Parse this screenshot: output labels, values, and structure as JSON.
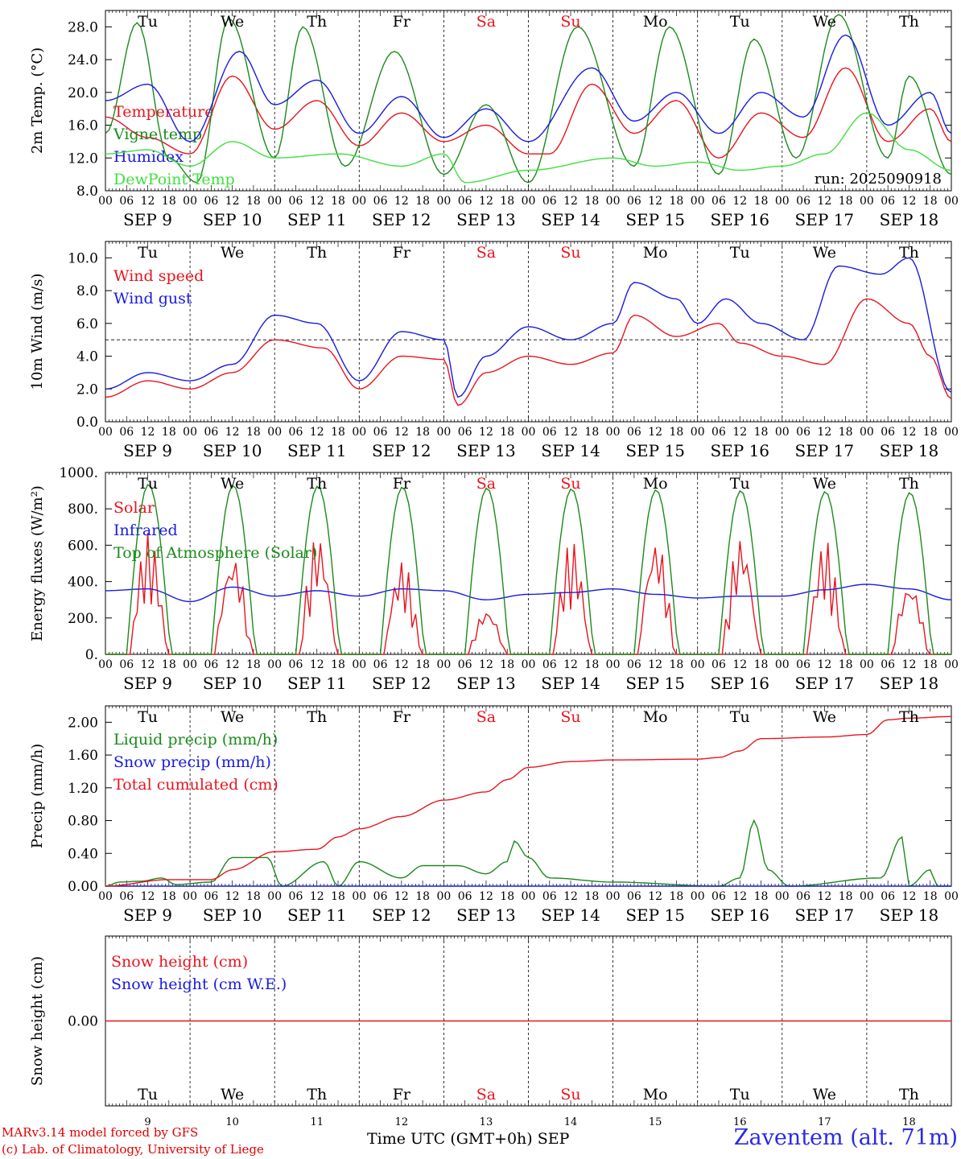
{
  "run_label": "run: 2025090918",
  "station": "Zaventem (alt. 71m)",
  "credit_line1": "MARv3.14 model forced by GFS",
  "credit_line2": "(c) Lab. of Climatology, University of Liege",
  "x_axis_title": "Time UTC (GMT+0h) SEP",
  "hour_ticks": [
    "00",
    "06",
    "12",
    "18"
  ],
  "days": [
    {
      "weekday": "Tu",
      "date": "SEP  9",
      "num": "9",
      "weekend": false
    },
    {
      "weekday": "We",
      "date": "SEP 10",
      "num": "10",
      "weekend": false
    },
    {
      "weekday": "Th",
      "date": "SEP 11",
      "num": "11",
      "weekend": false
    },
    {
      "weekday": "Fr",
      "date": "SEP 12",
      "num": "12",
      "weekend": false
    },
    {
      "weekday": "Sa",
      "date": "SEP 13",
      "num": "13",
      "weekend": true
    },
    {
      "weekday": "Su",
      "date": "SEP 14",
      "num": "14",
      "weekend": true
    },
    {
      "weekday": "Mo",
      "date": "SEP 15",
      "num": "15",
      "weekend": false
    },
    {
      "weekday": "Tu",
      "date": "SEP 16",
      "num": "16",
      "weekend": false
    },
    {
      "weekday": "We",
      "date": "SEP 17",
      "num": "17",
      "weekend": false
    },
    {
      "weekday": "Th",
      "date": "SEP 18",
      "num": "18",
      "weekend": false
    }
  ],
  "colors": {
    "red": "#e8141e",
    "green": "#1b8a1b",
    "blue": "#1a1ae0",
    "lightgreen": "#3fe03f",
    "weekend": "#e8141e"
  },
  "chart_data": [
    {
      "type": "line",
      "ylabel": "2m Temp. (°C)",
      "ylim": [
        8,
        30
      ],
      "yticks": [
        8,
        12,
        16,
        20,
        24,
        28
      ],
      "tick_format": "1",
      "x_unit": "hours since 2025-09-09 00 UTC",
      "series": [
        {
          "name": "Temperature",
          "color": "red",
          "points": [
            [
              0,
              17
            ],
            [
              12,
              14.5
            ],
            [
              24,
              12.5
            ],
            [
              36,
              22
            ],
            [
              48,
              15.5
            ],
            [
              60,
              19
            ],
            [
              72,
              13.5
            ],
            [
              84,
              17.5
            ],
            [
              96,
              14
            ],
            [
              108,
              16
            ],
            [
              120,
              12.5
            ],
            [
              126,
              12.5
            ],
            [
              138,
              21
            ],
            [
              150,
              15
            ],
            [
              162,
              19
            ],
            [
              174,
              12
            ],
            [
              186,
              17.5
            ],
            [
              198,
              14.5
            ],
            [
              210,
              23
            ],
            [
              222,
              14
            ],
            [
              234,
              18
            ],
            [
              240,
              14
            ]
          ]
        },
        {
          "name": "Vigne temp",
          "color": "green",
          "points": [
            [
              0,
              15
            ],
            [
              9,
              28.5
            ],
            [
              18,
              12
            ],
            [
              26,
              9
            ],
            [
              35,
              29
            ],
            [
              48,
              12
            ],
            [
              56,
              28
            ],
            [
              68,
              11
            ],
            [
              82,
              25
            ],
            [
              96,
              10
            ],
            [
              108,
              18.5
            ],
            [
              120,
              9
            ],
            [
              134,
              28
            ],
            [
              150,
              11
            ],
            [
              160,
              28
            ],
            [
              174,
              10
            ],
            [
              184,
              26.5
            ],
            [
              196,
              12
            ],
            [
              208,
              29.5
            ],
            [
              222,
              12
            ],
            [
              228,
              22
            ],
            [
              240,
              10
            ]
          ]
        },
        {
          "name": "Humidex",
          "color": "blue",
          "points": [
            [
              0,
              19
            ],
            [
              12,
              21
            ],
            [
              24,
              14
            ],
            [
              38,
              25
            ],
            [
              48,
              18.5
            ],
            [
              60,
              21.5
            ],
            [
              72,
              15
            ],
            [
              84,
              19.5
            ],
            [
              96,
              14.5
            ],
            [
              108,
              18
            ],
            [
              120,
              14
            ],
            [
              138,
              23
            ],
            [
              150,
              16.5
            ],
            [
              162,
              20
            ],
            [
              174,
              15
            ],
            [
              186,
              20
            ],
            [
              198,
              17
            ],
            [
              210,
              27
            ],
            [
              222,
              16
            ],
            [
              234,
              20
            ],
            [
              240,
              15
            ]
          ]
        },
        {
          "name": "DewPoint Temp",
          "color": "lightgreen",
          "points": [
            [
              0,
              12.5
            ],
            [
              12,
              13
            ],
            [
              24,
              11
            ],
            [
              36,
              14
            ],
            [
              48,
              12
            ],
            [
              66,
              12.5
            ],
            [
              84,
              11
            ],
            [
              96,
              12.5
            ],
            [
              102,
              9
            ],
            [
              120,
              10.5
            ],
            [
              144,
              12
            ],
            [
              156,
              11
            ],
            [
              168,
              11.5
            ],
            [
              180,
              10.5
            ],
            [
              192,
              11
            ],
            [
              204,
              12.5
            ],
            [
              216,
              17.5
            ],
            [
              228,
              13
            ],
            [
              240,
              10.5
            ]
          ]
        }
      ]
    },
    {
      "type": "line",
      "ylabel": "10m Wind (m/s)",
      "ylim": [
        0,
        11
      ],
      "yticks": [
        0,
        2,
        4,
        6,
        8,
        10
      ],
      "tick_format": "1",
      "reference_line": 5,
      "x_unit": "hours since 2025-09-09 00 UTC",
      "series": [
        {
          "name": "Wind speed",
          "color": "red",
          "points": [
            [
              0,
              1.5
            ],
            [
              12,
              2.5
            ],
            [
              24,
              2
            ],
            [
              36,
              3
            ],
            [
              48,
              5
            ],
            [
              62,
              4.5
            ],
            [
              72,
              2
            ],
            [
              84,
              4
            ],
            [
              96,
              3.8
            ],
            [
              100,
              1
            ],
            [
              108,
              3
            ],
            [
              120,
              4
            ],
            [
              132,
              3.5
            ],
            [
              144,
              4.2
            ],
            [
              150,
              6.5
            ],
            [
              162,
              5.2
            ],
            [
              174,
              6
            ],
            [
              180,
              4.8
            ],
            [
              192,
              4
            ],
            [
              204,
              3.5
            ],
            [
              216,
              7.5
            ],
            [
              228,
              6
            ],
            [
              234,
              4
            ],
            [
              240,
              1.4
            ]
          ]
        },
        {
          "name": "Wind gust",
          "color": "blue",
          "points": [
            [
              0,
              2
            ],
            [
              12,
              3
            ],
            [
              24,
              2.5
            ],
            [
              36,
              3.5
            ],
            [
              48,
              6.5
            ],
            [
              60,
              6
            ],
            [
              72,
              2.5
            ],
            [
              84,
              5.5
            ],
            [
              96,
              5
            ],
            [
              100,
              1.5
            ],
            [
              108,
              4
            ],
            [
              120,
              5.8
            ],
            [
              132,
              5
            ],
            [
              144,
              6
            ],
            [
              150,
              8.5
            ],
            [
              162,
              7.5
            ],
            [
              168,
              6
            ],
            [
              176,
              7.5
            ],
            [
              186,
              6
            ],
            [
              198,
              5
            ],
            [
              208,
              9.5
            ],
            [
              220,
              9
            ],
            [
              228,
              10
            ],
            [
              240,
              1.8
            ]
          ]
        }
      ]
    },
    {
      "type": "line",
      "ylabel": "Energy fluxes (W/m²)",
      "ylim": [
        0,
        1000
      ],
      "yticks": [
        0,
        200,
        400,
        600,
        800,
        1000
      ],
      "tick_format": "0.",
      "x_unit": "hours since 2025-09-09 00 UTC",
      "diurnal": {
        "rise": 6,
        "set": 18.5,
        "toa_peaks": [
          935,
          930,
          925,
          920,
          915,
          910,
          905,
          900,
          895,
          890
        ]
      },
      "solar_peaks": [
        670,
        560,
        670,
        520,
        260,
        630,
        650,
        660,
        630,
        410
      ],
      "series": [
        {
          "name": "Solar",
          "color": "red",
          "points": []
        },
        {
          "name": "Infrared",
          "color": "blue",
          "points": [
            [
              0,
              350
            ],
            [
              12,
              360
            ],
            [
              24,
              290
            ],
            [
              36,
              370
            ],
            [
              48,
              320
            ],
            [
              60,
              350
            ],
            [
              72,
              320
            ],
            [
              84,
              360
            ],
            [
              96,
              350
            ],
            [
              108,
              300
            ],
            [
              120,
              330
            ],
            [
              132,
              340
            ],
            [
              144,
              360
            ],
            [
              156,
              330
            ],
            [
              168,
              310
            ],
            [
              180,
              320
            ],
            [
              192,
              320
            ],
            [
              204,
              355
            ],
            [
              216,
              385
            ],
            [
              228,
              360
            ],
            [
              240,
              300
            ]
          ]
        },
        {
          "name": "Top of Atmosphere (Solar)",
          "color": "green",
          "points": []
        }
      ]
    },
    {
      "type": "line",
      "ylabel": "Precip (mm/h)",
      "ylim": [
        0,
        2.2
      ],
      "yticks": [
        0,
        0.4,
        0.8,
        1.2,
        1.6,
        2.0
      ],
      "tick_format": "2",
      "x_unit": "hours since 2025-09-09 00 UTC",
      "series": [
        {
          "name": "Liquid precip (mm/h)",
          "color": "green",
          "points": [
            [
              0,
              0
            ],
            [
              4,
              0.05
            ],
            [
              10,
              0.06
            ],
            [
              16,
              0.1
            ],
            [
              20,
              0.02
            ],
            [
              30,
              0.05
            ],
            [
              36,
              0.35
            ],
            [
              42,
              0.35
            ],
            [
              46,
              0.35
            ],
            [
              50,
              0
            ],
            [
              62,
              0.3
            ],
            [
              66,
              0
            ],
            [
              72,
              0.3
            ],
            [
              84,
              0.1
            ],
            [
              90,
              0.25
            ],
            [
              100,
              0.25
            ],
            [
              108,
              0.15
            ],
            [
              114,
              0.3
            ],
            [
              116,
              0.55
            ],
            [
              120,
              0.35
            ],
            [
              126,
              0.1
            ],
            [
              144,
              0.05
            ],
            [
              174,
              0
            ],
            [
              180,
              0.1
            ],
            [
              184,
              0.8
            ],
            [
              188,
              0.2
            ],
            [
              194,
              0
            ],
            [
              220,
              0.1
            ],
            [
              226,
              0.6
            ],
            [
              228,
              0
            ],
            [
              234,
              0.2
            ],
            [
              236,
              0
            ],
            [
              240,
              0
            ]
          ]
        },
        {
          "name": "Snow precip (mm/h)",
          "color": "blue",
          "points": [
            [
              0,
              0
            ],
            [
              240,
              0
            ]
          ]
        },
        {
          "name": "Total cumulated (cm)",
          "color": "red",
          "points": [
            [
              0,
              0
            ],
            [
              18,
              0.08
            ],
            [
              30,
              0.08
            ],
            [
              36,
              0.2
            ],
            [
              48,
              0.42
            ],
            [
              60,
              0.45
            ],
            [
              66,
              0.6
            ],
            [
              72,
              0.7
            ],
            [
              84,
              0.85
            ],
            [
              96,
              1.05
            ],
            [
              108,
              1.15
            ],
            [
              114,
              1.3
            ],
            [
              120,
              1.45
            ],
            [
              132,
              1.52
            ],
            [
              144,
              1.54
            ],
            [
              168,
              1.55
            ],
            [
              174,
              1.57
            ],
            [
              180,
              1.65
            ],
            [
              186,
              1.8
            ],
            [
              204,
              1.82
            ],
            [
              216,
              1.85
            ],
            [
              222,
              2.03
            ],
            [
              228,
              2.05
            ],
            [
              240,
              2.07
            ]
          ]
        }
      ]
    },
    {
      "type": "line",
      "ylabel": "Snow height (cm)",
      "ylim": [
        -1,
        1
      ],
      "yticks": [
        0
      ],
      "tick_format": "2",
      "x_unit": "hours since 2025-09-09 00 UTC",
      "series": [
        {
          "name": "Snow height (cm)",
          "color": "red",
          "points": [
            [
              0,
              0
            ],
            [
              240,
              0
            ]
          ]
        },
        {
          "name": "Snow height (cm W.E.)",
          "color": "blue",
          "points": []
        }
      ]
    }
  ]
}
